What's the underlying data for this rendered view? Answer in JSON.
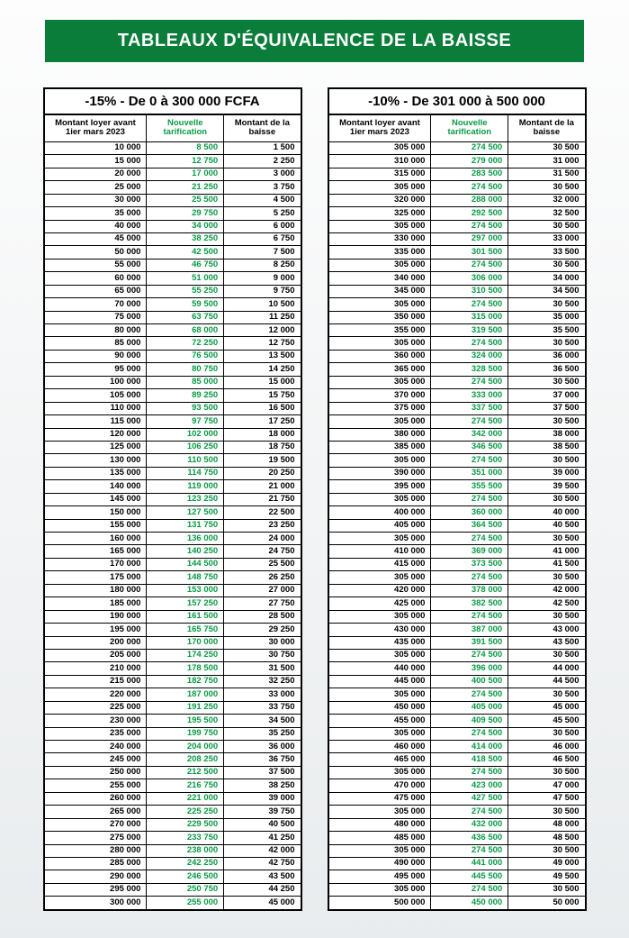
{
  "banner": "TABLEAUX D'ÉQUIVALENCE DE LA BAISSE",
  "accent_color": "#0a9a46",
  "banner_bg": "#0a7d3a",
  "tableA": {
    "caption": "-15% - De 0 à 300 000 FCFA",
    "headers": {
      "col1": "Montant loyer avant 1ier mars 2023",
      "col2": "Nouvelle tarification",
      "col3": "Montant de la baisse"
    },
    "rows": [
      [
        "10 000",
        "8 500",
        "1 500"
      ],
      [
        "15 000",
        "12 750",
        "2 250"
      ],
      [
        "20 000",
        "17 000",
        "3 000"
      ],
      [
        "25 000",
        "21 250",
        "3 750"
      ],
      [
        "30 000",
        "25 500",
        "4 500"
      ],
      [
        "35 000",
        "29 750",
        "5 250"
      ],
      [
        "40 000",
        "34 000",
        "6 000"
      ],
      [
        "45 000",
        "38 250",
        "6 750"
      ],
      [
        "50 000",
        "42 500",
        "7 500"
      ],
      [
        "55 000",
        "46 750",
        "8 250"
      ],
      [
        "60 000",
        "51 000",
        "9 000"
      ],
      [
        "65 000",
        "55 250",
        "9 750"
      ],
      [
        "70 000",
        "59 500",
        "10 500"
      ],
      [
        "75 000",
        "63 750",
        "11 250"
      ],
      [
        "80 000",
        "68 000",
        "12 000"
      ],
      [
        "85 000",
        "72 250",
        "12 750"
      ],
      [
        "90 000",
        "76 500",
        "13 500"
      ],
      [
        "95 000",
        "80 750",
        "14 250"
      ],
      [
        "100 000",
        "85 000",
        "15 000"
      ],
      [
        "105 000",
        "89 250",
        "15 750"
      ],
      [
        "110 000",
        "93 500",
        "16 500"
      ],
      [
        "115 000",
        "97 750",
        "17 250"
      ],
      [
        "120 000",
        "102 000",
        "18 000"
      ],
      [
        "125 000",
        "106 250",
        "18 750"
      ],
      [
        "130 000",
        "110 500",
        "19 500"
      ],
      [
        "135 000",
        "114 750",
        "20 250"
      ],
      [
        "140 000",
        "119 000",
        "21 000"
      ],
      [
        "145 000",
        "123 250",
        "21 750"
      ],
      [
        "150 000",
        "127 500",
        "22 500"
      ],
      [
        "155 000",
        "131 750",
        "23 250"
      ],
      [
        "160 000",
        "136 000",
        "24 000"
      ],
      [
        "165 000",
        "140 250",
        "24 750"
      ],
      [
        "170 000",
        "144 500",
        "25 500"
      ],
      [
        "175 000",
        "148 750",
        "26 250"
      ],
      [
        "180 000",
        "153 000",
        "27 000"
      ],
      [
        "185 000",
        "157 250",
        "27 750"
      ],
      [
        "190 000",
        "161 500",
        "28 500"
      ],
      [
        "195 000",
        "165 750",
        "29 250"
      ],
      [
        "200 000",
        "170 000",
        "30 000"
      ],
      [
        "205 000",
        "174 250",
        "30 750"
      ],
      [
        "210 000",
        "178 500",
        "31 500"
      ],
      [
        "215 000",
        "182 750",
        "32 250"
      ],
      [
        "220 000",
        "187 000",
        "33 000"
      ],
      [
        "225 000",
        "191 250",
        "33 750"
      ],
      [
        "230 000",
        "195 500",
        "34 500"
      ],
      [
        "235 000",
        "199 750",
        "35 250"
      ],
      [
        "240 000",
        "204 000",
        "36 000"
      ],
      [
        "245 000",
        "208 250",
        "36 750"
      ],
      [
        "250 000",
        "212 500",
        "37 500"
      ],
      [
        "255 000",
        "216 750",
        "38 250"
      ],
      [
        "260 000",
        "221 000",
        "39 000"
      ],
      [
        "265 000",
        "225 250",
        "39 750"
      ],
      [
        "270 000",
        "229 500",
        "40 500"
      ],
      [
        "275 000",
        "233 750",
        "41 250"
      ],
      [
        "280 000",
        "238 000",
        "42 000"
      ],
      [
        "285 000",
        "242 250",
        "42 750"
      ],
      [
        "290 000",
        "246 500",
        "43 500"
      ],
      [
        "295 000",
        "250 750",
        "44 250"
      ],
      [
        "300 000",
        "255 000",
        "45 000"
      ]
    ]
  },
  "tableB": {
    "caption": "-10% - De 301 000 à 500 000",
    "headers": {
      "col1": "Montant loyer avant 1ier mars 2023",
      "col2": "Nouvelle tarification",
      "col3": "Montant de la baisse"
    },
    "rows": [
      [
        "305 000",
        "274 500",
        "30 500"
      ],
      [
        "310 000",
        "279 000",
        "31 000"
      ],
      [
        "315 000",
        "283 500",
        "31 500"
      ],
      [
        "305 000",
        "274 500",
        "30 500"
      ],
      [
        "320 000",
        "288 000",
        "32 000"
      ],
      [
        "325 000",
        "292 500",
        "32 500"
      ],
      [
        "305 000",
        "274 500",
        "30 500"
      ],
      [
        "330 000",
        "297 000",
        "33 000"
      ],
      [
        "335 000",
        "301 500",
        "33 500"
      ],
      [
        "305 000",
        "274 500",
        "30 500"
      ],
      [
        "340 000",
        "306 000",
        "34 000"
      ],
      [
        "345 000",
        "310 500",
        "34 500"
      ],
      [
        "305 000",
        "274 500",
        "30 500"
      ],
      [
        "350 000",
        "315 000",
        "35 000"
      ],
      [
        "355 000",
        "319 500",
        "35 500"
      ],
      [
        "305 000",
        "274 500",
        "30 500"
      ],
      [
        "360 000",
        "324 000",
        "36 000"
      ],
      [
        "365 000",
        "328 500",
        "36 500"
      ],
      [
        "305 000",
        "274 500",
        "30 500"
      ],
      [
        "370 000",
        "333 000",
        "37 000"
      ],
      [
        "375 000",
        "337 500",
        "37 500"
      ],
      [
        "305 000",
        "274 500",
        "30 500"
      ],
      [
        "380 000",
        "342 000",
        "38 000"
      ],
      [
        "385 000",
        "346 500",
        "38 500"
      ],
      [
        "305 000",
        "274 500",
        "30 500"
      ],
      [
        "390 000",
        "351 000",
        "39 000"
      ],
      [
        "395 000",
        "355 500",
        "39 500"
      ],
      [
        "305 000",
        "274 500",
        "30 500"
      ],
      [
        "400 000",
        "360 000",
        "40 000"
      ],
      [
        "405 000",
        "364 500",
        "40 500"
      ],
      [
        "305 000",
        "274 500",
        "30 500"
      ],
      [
        "410 000",
        "369 000",
        "41 000"
      ],
      [
        "415 000",
        "373 500",
        "41 500"
      ],
      [
        "305 000",
        "274 500",
        "30 500"
      ],
      [
        "420 000",
        "378 000",
        "42 000"
      ],
      [
        "425 000",
        "382 500",
        "42 500"
      ],
      [
        "305 000",
        "274 500",
        "30 500"
      ],
      [
        "430 000",
        "387 000",
        "43 000"
      ],
      [
        "435 000",
        "391 500",
        "43 500"
      ],
      [
        "305 000",
        "274 500",
        "30 500"
      ],
      [
        "440 000",
        "396 000",
        "44 000"
      ],
      [
        "445 000",
        "400 500",
        "44 500"
      ],
      [
        "305 000",
        "274 500",
        "30 500"
      ],
      [
        "450 000",
        "405 000",
        "45 000"
      ],
      [
        "455 000",
        "409 500",
        "45 500"
      ],
      [
        "305 000",
        "274 500",
        "30 500"
      ],
      [
        "460 000",
        "414 000",
        "46 000"
      ],
      [
        "465 000",
        "418 500",
        "46 500"
      ],
      [
        "305 000",
        "274 500",
        "30 500"
      ],
      [
        "470 000",
        "423 000",
        "47 000"
      ],
      [
        "475 000",
        "427 500",
        "47 500"
      ],
      [
        "305 000",
        "274 500",
        "30 500"
      ],
      [
        "480 000",
        "432 000",
        "48 000"
      ],
      [
        "485 000",
        "436 500",
        "48 500"
      ],
      [
        "305 000",
        "274 500",
        "30 500"
      ],
      [
        "490 000",
        "441 000",
        "49 000"
      ],
      [
        "495 000",
        "445 500",
        "49 500"
      ],
      [
        "305 000",
        "274 500",
        "30 500"
      ],
      [
        "500 000",
        "450 000",
        "50 000"
      ]
    ]
  }
}
